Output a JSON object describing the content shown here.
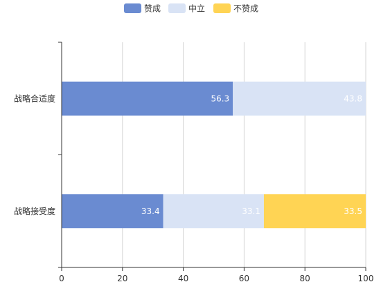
{
  "chart_data": {
    "type": "bar",
    "orientation": "horizontal",
    "stacked": true,
    "categories": [
      "战略合适度",
      "战略接受度"
    ],
    "series": [
      {
        "name": "赞成",
        "values": [
          56.3,
          33.4
        ],
        "color": "#6a8bd1",
        "label_color": "#ffffff"
      },
      {
        "name": "中立",
        "values": [
          43.8,
          33.1
        ],
        "color": "#d9e3f5",
        "label_color": "#ffffff"
      },
      {
        "name": "不赞成",
        "values": [
          0,
          33.5
        ],
        "color": "#ffd454",
        "label_color": "#ffffff"
      }
    ],
    "xlim": [
      0,
      100
    ],
    "xticks": [
      0,
      20,
      40,
      60,
      80,
      100
    ],
    "grid": true,
    "legend_position": "top-center"
  }
}
